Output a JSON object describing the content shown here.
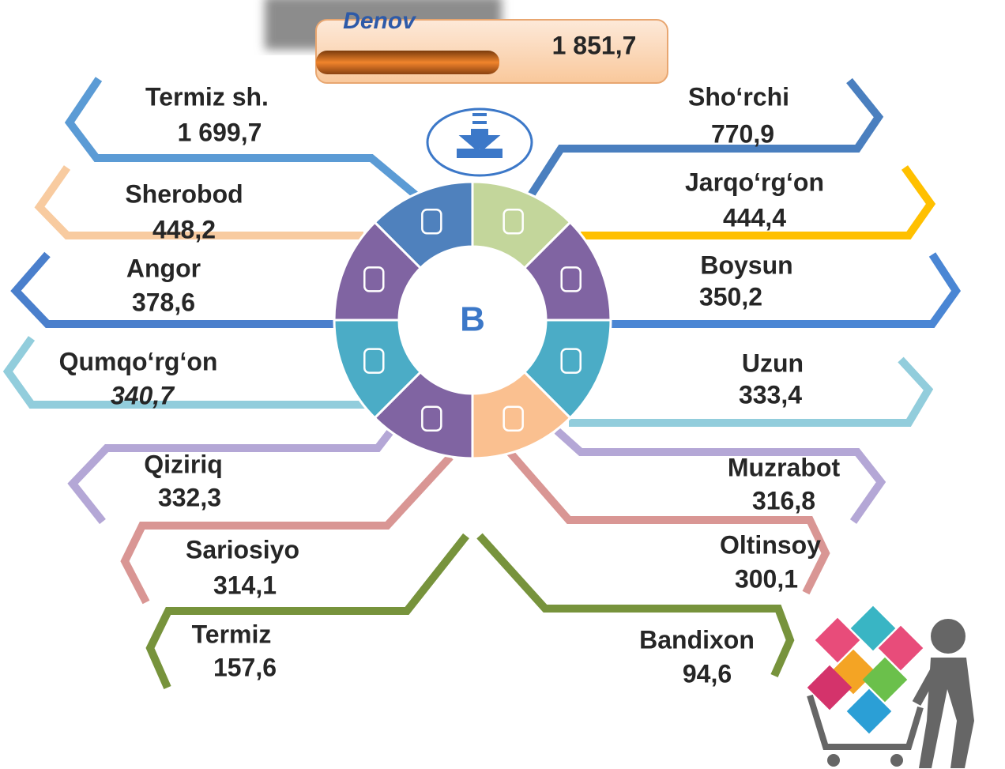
{
  "header": {
    "name": "Denov",
    "value": "1 851,7"
  },
  "center_label": "B",
  "items": [
    {
      "name": "Termiz sh.",
      "value": "1 699,7"
    },
    {
      "name": "Sherobod",
      "value": "448,2"
    },
    {
      "name": "Angor",
      "value": "378,6"
    },
    {
      "name": "Qumqo‘rg‘on",
      "value": "340,7"
    },
    {
      "name": "Qiziriq",
      "value": "332,3"
    },
    {
      "name": "Sariosiyo",
      "value": "314,1"
    },
    {
      "name": "Termiz",
      "value": "157,6"
    },
    {
      "name": "Sho‘rchi",
      "value": "770,9"
    },
    {
      "name": "Jarqo‘rg‘on",
      "value": "444,4"
    },
    {
      "name": "Boysun",
      "value": "350,2"
    },
    {
      "name": "Uzun",
      "value": "333,4"
    },
    {
      "name": "Muzrabot",
      "value": "316,8"
    },
    {
      "name": "Oltinsoy",
      "value": "300,1"
    },
    {
      "name": "Bandixon",
      "value": "94,6"
    }
  ]
}
